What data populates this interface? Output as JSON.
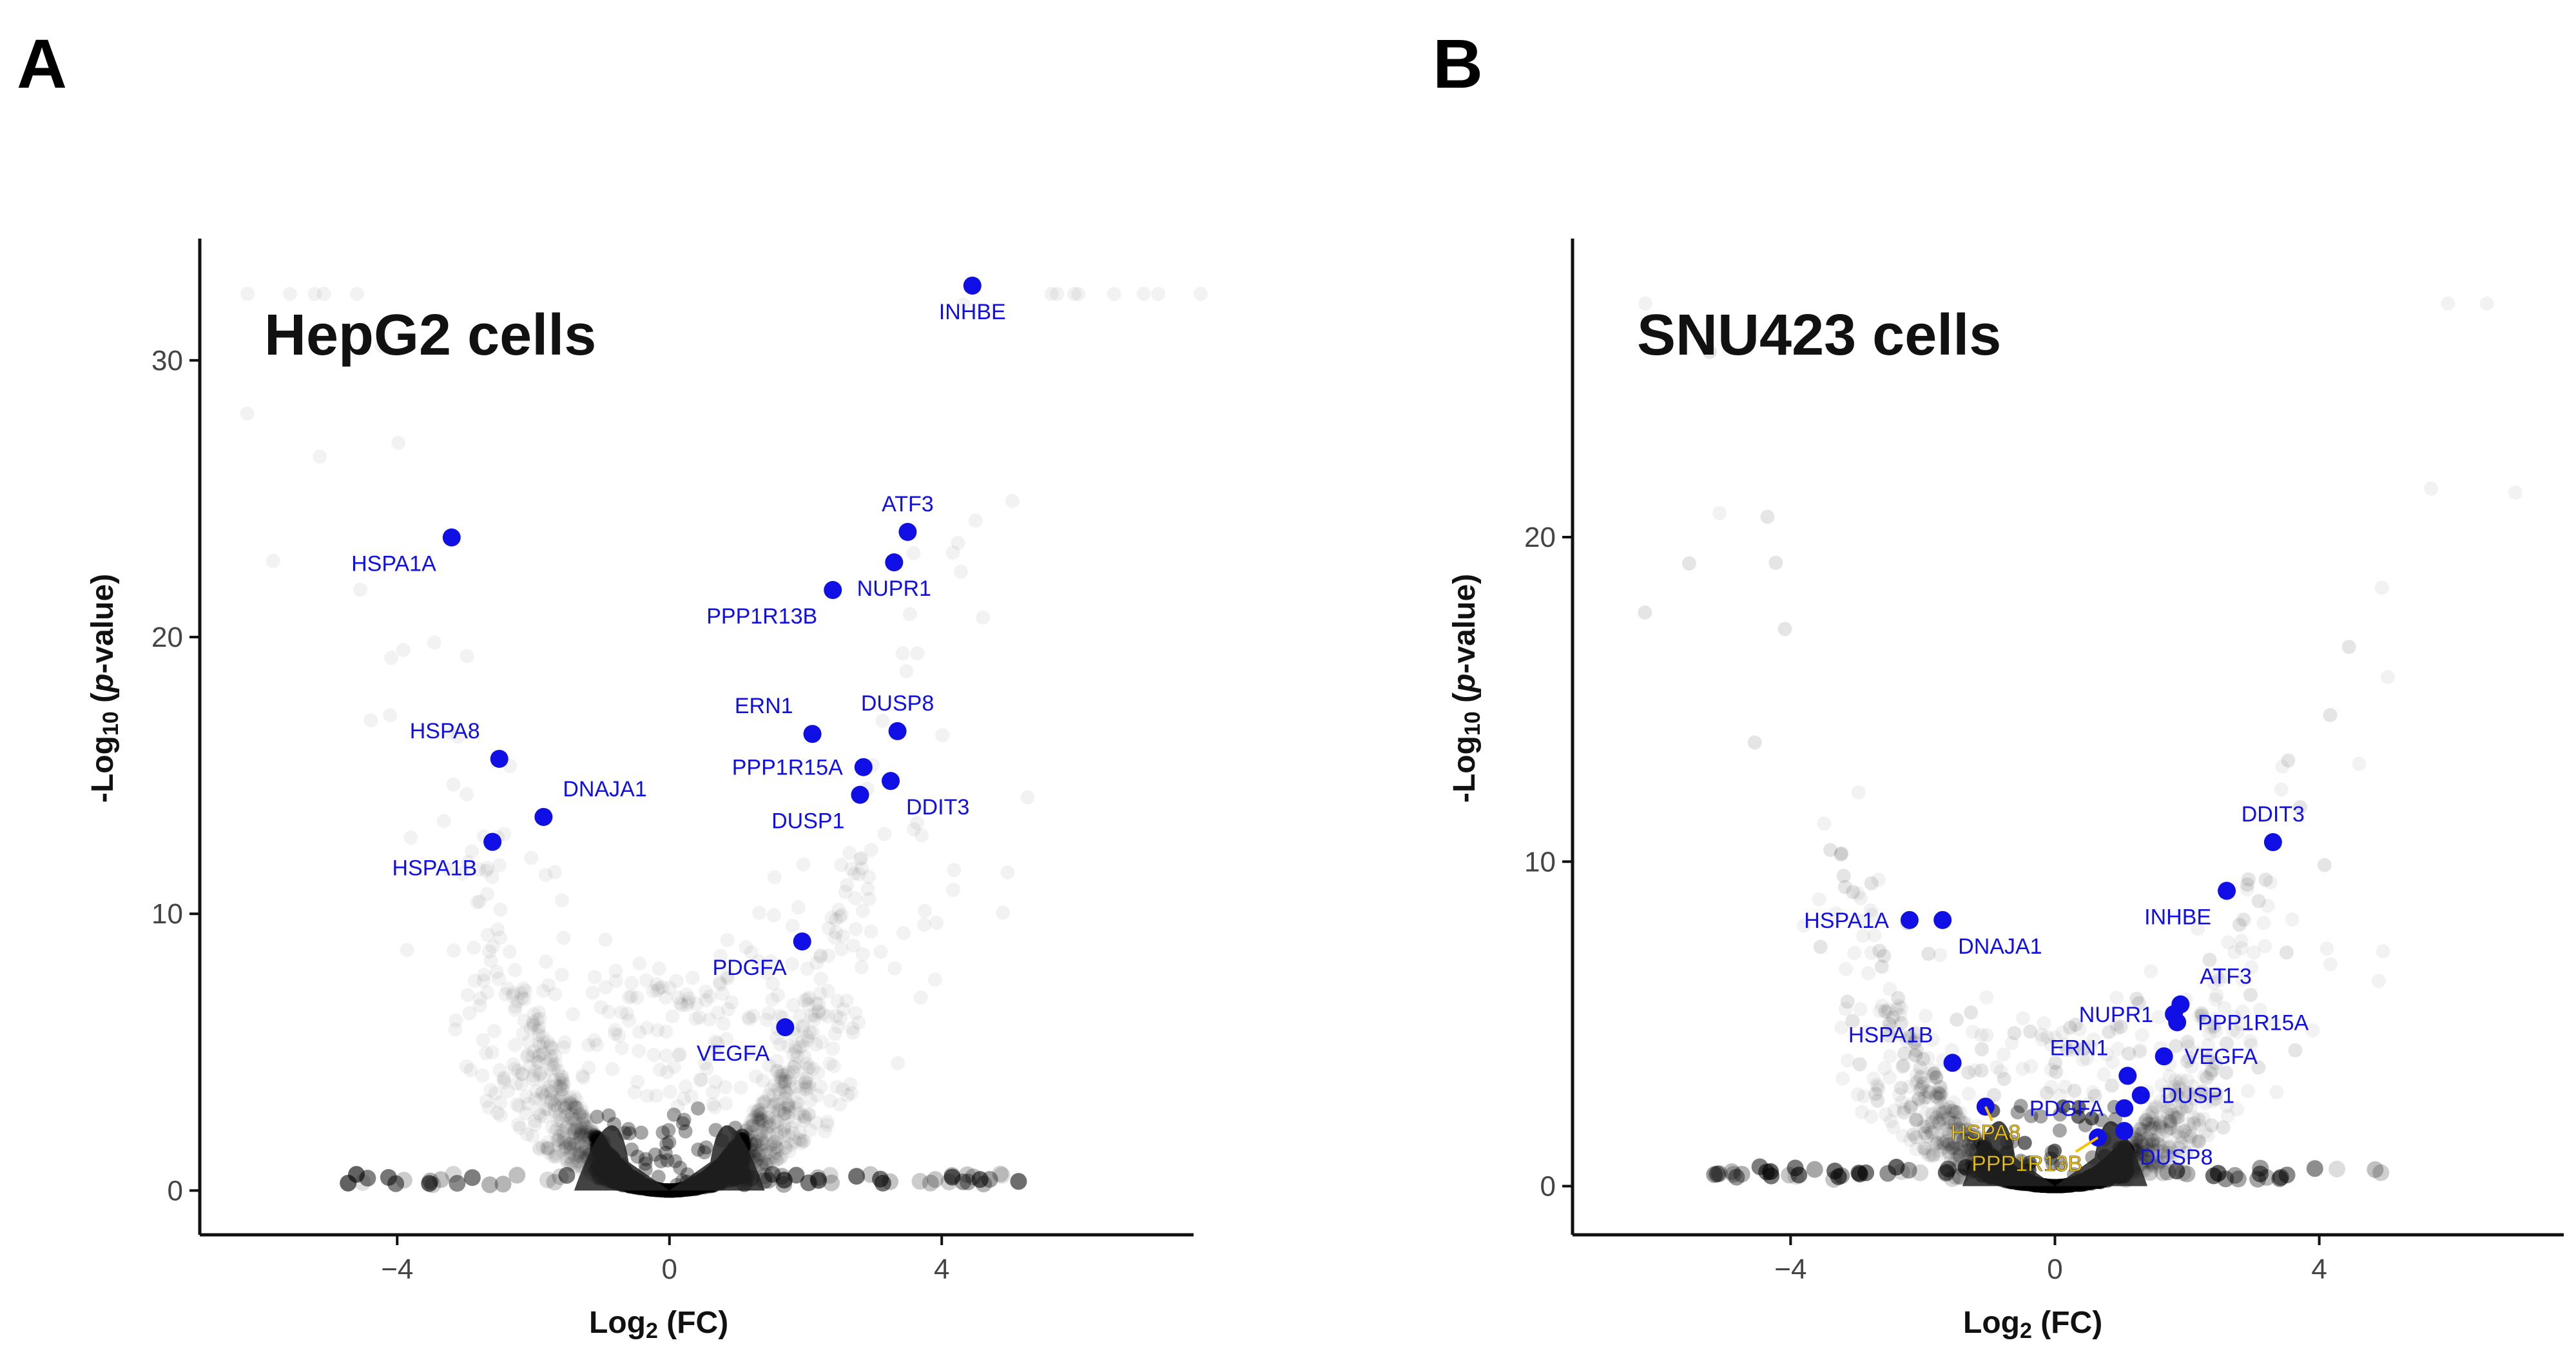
{
  "figure": {
    "panels": [
      {
        "letter": "A",
        "title": "HepG2 cells"
      },
      {
        "letter": "B",
        "title": "SNU423 cells"
      }
    ],
    "axis_labels": {
      "x_prefix": "Log",
      "x_sub": "2",
      "x_suffix": " (FC)",
      "y_prefix": "-Log",
      "y_sub": "10",
      "y_open": " (",
      "y_p": "p",
      "y_close": "-value)"
    }
  },
  "colors": {
    "highlight": "#1010e6",
    "highlight_yellow": "#f2c500",
    "background_points": "#000000",
    "axis": "#111111"
  },
  "chart_data": [
    {
      "type": "scatter",
      "title": "HepG2 cells",
      "xlabel": "Log2 (FC)",
      "ylabel": "-Log10 (p-value)",
      "xlim": [
        -6.9,
        7.7
      ],
      "ylim": [
        -1.6,
        34.4
      ],
      "xticks": [
        -4,
        0,
        4
      ],
      "xtick_labels": [
        "−4",
        "0",
        "4"
      ],
      "yticks": [
        0,
        10,
        20,
        30
      ],
      "ytick_labels": [
        "0",
        "10",
        "20",
        "30"
      ],
      "grid": false,
      "background_note": "dense cloud of non-highlighted genes (translucent grey)",
      "highlighted": [
        {
          "gene": "INHBE",
          "x": 4.45,
          "y": 32.7,
          "label_pos": "below"
        },
        {
          "gene": "ATF3",
          "x": 3.5,
          "y": 23.8,
          "label_pos": "above"
        },
        {
          "gene": "NUPR1",
          "x": 3.3,
          "y": 22.7,
          "label_pos": "below"
        },
        {
          "gene": "PPP1R13B",
          "x": 2.4,
          "y": 21.7,
          "label_pos": "below-left"
        },
        {
          "gene": "HSPA1A",
          "x": -3.2,
          "y": 23.6,
          "label_pos": "below-left"
        },
        {
          "gene": "HSPA8",
          "x": -2.5,
          "y": 15.6,
          "label_pos": "above-left"
        },
        {
          "gene": "DNAJA1",
          "x": -1.85,
          "y": 13.5,
          "label_pos": "above-right"
        },
        {
          "gene": "HSPA1B",
          "x": -2.6,
          "y": 12.6,
          "label_pos": "below-left"
        },
        {
          "gene": "ERN1",
          "x": 2.1,
          "y": 16.5,
          "label_pos": "above-left"
        },
        {
          "gene": "DUSP8",
          "x": 3.35,
          "y": 16.6,
          "label_pos": "above"
        },
        {
          "gene": "PPP1R15A",
          "x": 2.85,
          "y": 15.3,
          "label_pos": "left"
        },
        {
          "gene": "DDIT3",
          "x": 3.25,
          "y": 14.8,
          "label_pos": "below-right"
        },
        {
          "gene": "DUSP1",
          "x": 2.8,
          "y": 14.3,
          "label_pos": "below-left"
        },
        {
          "gene": "PDGFA",
          "x": 1.95,
          "y": 9.0,
          "label_pos": "below-left"
        },
        {
          "gene": "VEGFA",
          "x": 1.7,
          "y": 5.9,
          "label_pos": "below-left"
        }
      ]
    },
    {
      "type": "scatter",
      "title": "SNU423 cells",
      "xlabel": "Log2 (FC)",
      "ylabel": "-Log10 (p-value)",
      "xlim": [
        -7.3,
        7.7
      ],
      "ylim": [
        -1.5,
        29.2
      ],
      "xticks": [
        -4,
        0,
        4
      ],
      "xtick_labels": [
        "−4",
        "0",
        "4"
      ],
      "yticks": [
        0,
        10,
        20
      ],
      "ytick_labels": [
        "0",
        "10",
        "20"
      ],
      "grid": false,
      "background_note": "dense cloud of non-highlighted genes (translucent grey)",
      "highlighted": [
        {
          "gene": "DDIT3",
          "x": 3.3,
          "y": 10.6,
          "label_pos": "above"
        },
        {
          "gene": "INHBE",
          "x": 2.6,
          "y": 9.1,
          "label_pos": "below-left"
        },
        {
          "gene": "HSPA1A",
          "x": -2.2,
          "y": 8.2,
          "label_pos": "left"
        },
        {
          "gene": "DNAJA1",
          "x": -1.7,
          "y": 8.2,
          "label_pos": "below-right"
        },
        {
          "gene": "ATF3",
          "x": 1.9,
          "y": 5.6,
          "label_pos": "above-right"
        },
        {
          "gene": "NUPR1",
          "x": 1.8,
          "y": 5.3,
          "label_pos": "left"
        },
        {
          "gene": "PPP1R15A",
          "x": 1.85,
          "y": 5.05,
          "label_pos": "right"
        },
        {
          "gene": "VEGFA",
          "x": 1.65,
          "y": 4.0,
          "label_pos": "right"
        },
        {
          "gene": "HSPA1B",
          "x": -1.55,
          "y": 3.8,
          "label_pos": "above-left"
        },
        {
          "gene": "ERN1",
          "x": 1.1,
          "y": 3.4,
          "label_pos": "above-left"
        },
        {
          "gene": "DUSP1",
          "x": 1.3,
          "y": 2.8,
          "label_pos": "right"
        },
        {
          "gene": "PDGFA",
          "x": 1.05,
          "y": 2.4,
          "label_pos": "left"
        },
        {
          "gene": "HSPA8",
          "x": -1.05,
          "y": 2.45,
          "label_pos": "below",
          "color": "yellow"
        },
        {
          "gene": "DUSP8",
          "x": 1.05,
          "y": 1.7,
          "label_pos": "below-right"
        },
        {
          "gene": "PPP1R13B",
          "x": 0.65,
          "y": 1.5,
          "label_pos": "below-left",
          "color": "yellow"
        }
      ]
    }
  ]
}
